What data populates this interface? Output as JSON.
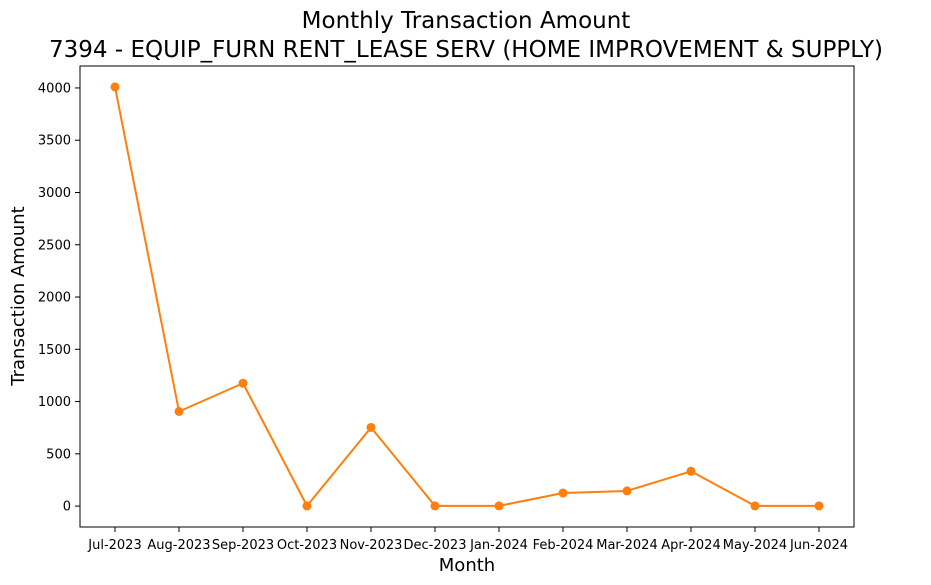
{
  "chart_data": {
    "type": "line",
    "title": "Monthly Transaction Amount",
    "subtitle": "7394 - EQUIP_FURN RENT_LEASE SERV (HOME IMPROVEMENT & SUPPLY)",
    "xlabel": "Month",
    "ylabel": "Transaction Amount",
    "categories": [
      "Jul-2023",
      "Aug-2023",
      "Sep-2023",
      "Oct-2023",
      "Nov-2023",
      "Dec-2023",
      "Jan-2024",
      "Feb-2024",
      "Mar-2024",
      "Apr-2024",
      "May-2024",
      "Jun-2024"
    ],
    "series": [
      {
        "values": [
          4010,
          905,
          1175,
          2,
          752,
          2,
          2,
          125,
          145,
          333,
          2,
          2
        ],
        "color": "#ff7f0e",
        "marker": "circle"
      }
    ],
    "yticks": [
      0,
      500,
      1000,
      1500,
      2000,
      2500,
      3000,
      3500,
      4000
    ],
    "ylim": [
      -200,
      4210
    ],
    "grid": false,
    "legend": false
  }
}
